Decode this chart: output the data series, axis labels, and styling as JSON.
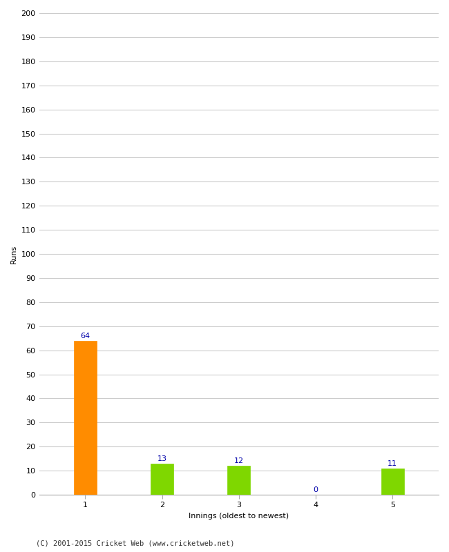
{
  "xlabel": "Innings (oldest to newest)",
  "ylabel": "Runs",
  "categories": [
    "1",
    "2",
    "3",
    "4",
    "5"
  ],
  "values": [
    64,
    13,
    12,
    0,
    11
  ],
  "bar_colors": [
    "#FF8C00",
    "#7FD700",
    "#7FD700",
    "#7FD700",
    "#7FD700"
  ],
  "ylim": [
    0,
    200
  ],
  "yticks": [
    0,
    10,
    20,
    30,
    40,
    50,
    60,
    70,
    80,
    90,
    100,
    110,
    120,
    130,
    140,
    150,
    160,
    170,
    180,
    190,
    200
  ],
  "label_color": "#0000AA",
  "label_fontsize": 8,
  "axis_label_fontsize": 8,
  "tick_fontsize": 8,
  "footer": "(C) 2001-2015 Cricket Web (www.cricketweb.net)",
  "background_color": "#FFFFFF",
  "grid_color": "#CCCCCC",
  "bar_width": 0.3
}
